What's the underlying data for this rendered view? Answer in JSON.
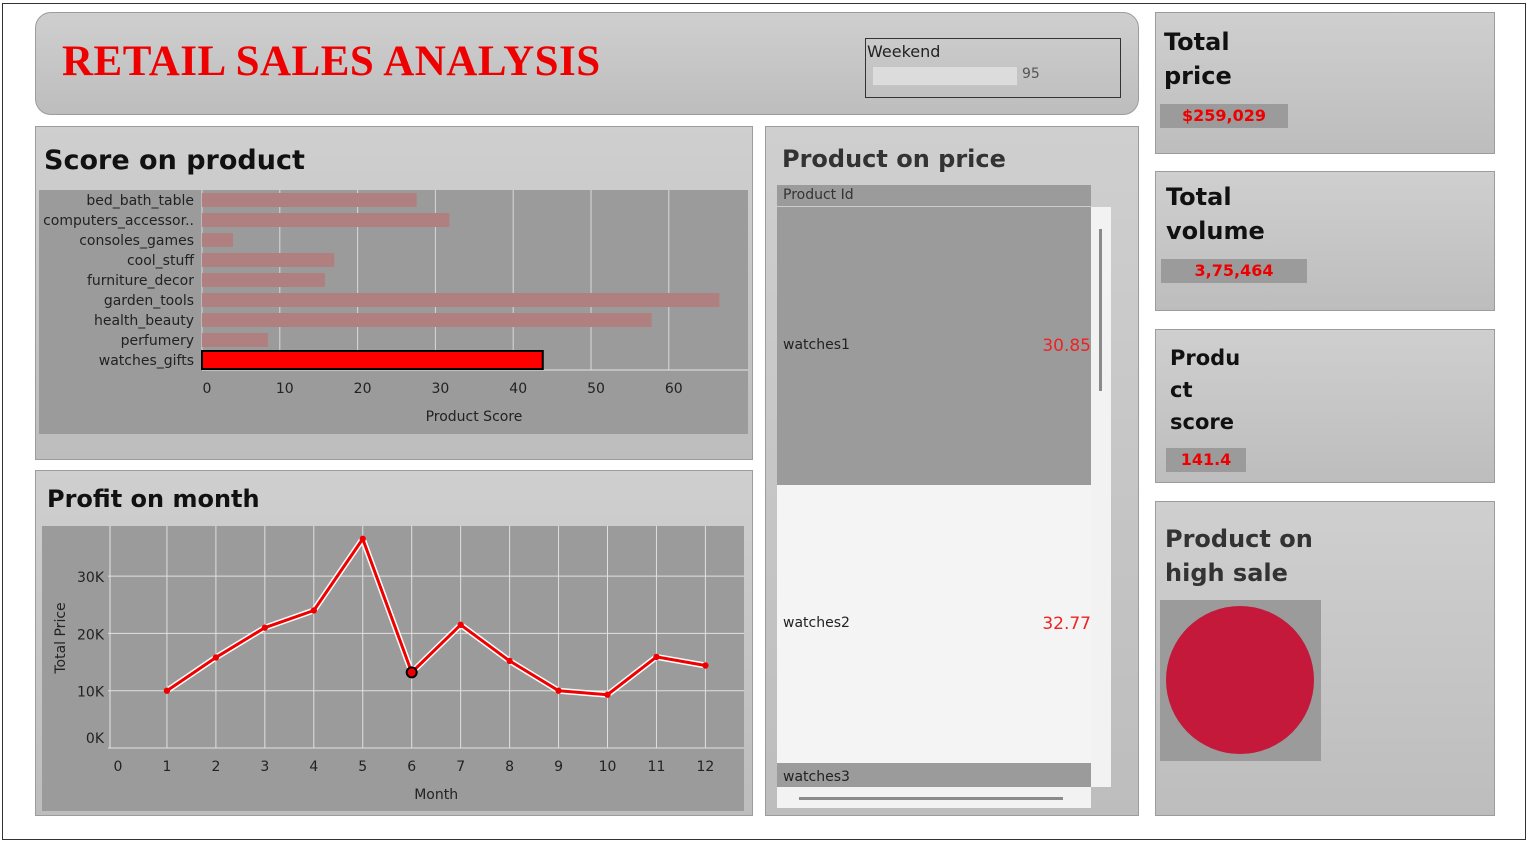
{
  "header": {
    "title": "RETAIL SALES ANALYSIS",
    "filter": {
      "label": "Weekend",
      "value": "95"
    }
  },
  "score_panel": {
    "title": "Score on product"
  },
  "profit_panel": {
    "title": "Profit on month"
  },
  "price_panel": {
    "title": "Product on price",
    "column_header": "Product Id",
    "rows": [
      {
        "label": "watches1",
        "value": "30.85"
      },
      {
        "label": "watches2",
        "value": "32.77"
      },
      {
        "label": "watches3",
        "value": ""
      }
    ]
  },
  "kpis": {
    "total_price": {
      "title_line1": "Total",
      "title_line2": "price",
      "value": "$259,029"
    },
    "total_volume": {
      "title_line1": "Total",
      "title_line2": "volume",
      "value": "3,75,464"
    },
    "product_score": {
      "title_line1": "Produ",
      "title_line2": "ct",
      "title_line3": "score",
      "value": "141.4"
    }
  },
  "high_sale_panel": {
    "title_line1": "Product on",
    "title_line2": "high sale"
  },
  "colors": {
    "title_red": "#ee0000",
    "bar_muted": "#b08080",
    "bar_highlight": "#ff0000",
    "line": "#ee0000",
    "circle": "#c4193a",
    "plot_bg": "#9b9b9b"
  },
  "chart_data": [
    {
      "type": "bar",
      "orientation": "horizontal",
      "categories": [
        "bed_bath_table",
        "computers_accessor..",
        "consoles_games",
        "cool_stuff",
        "furniture_decor",
        "garden_tools",
        "health_beauty",
        "perfumery",
        "watches_gifts"
      ],
      "values": [
        27.6,
        31.8,
        4,
        17,
        15.8,
        66.5,
        57.8,
        8.5,
        43.8
      ],
      "highlighted": "watches_gifts",
      "xlabel": "Product Score",
      "xticks": [
        0,
        10,
        20,
        30,
        40,
        50,
        60
      ],
      "xlim": [
        0,
        70
      ],
      "grid": true
    },
    {
      "type": "line",
      "x": [
        1,
        2,
        3,
        4,
        5,
        6,
        7,
        8,
        9,
        10,
        11,
        12
      ],
      "y": [
        10000,
        15800,
        21000,
        24000,
        36500,
        13200,
        21500,
        15200,
        10000,
        9300,
        15900,
        14400
      ],
      "highlighted_x": 6,
      "xlabel": "Month",
      "ylabel": "Total Price",
      "xticks": [
        0,
        1,
        2,
        3,
        4,
        5,
        6,
        7,
        8,
        9,
        10,
        11,
        12,
        13
      ],
      "yticks": [
        0,
        10000,
        20000,
        30000
      ],
      "ytick_labels": [
        "0K",
        "10K",
        "20K",
        "30K"
      ],
      "xlim": [
        0,
        13
      ],
      "grid": true
    }
  ]
}
